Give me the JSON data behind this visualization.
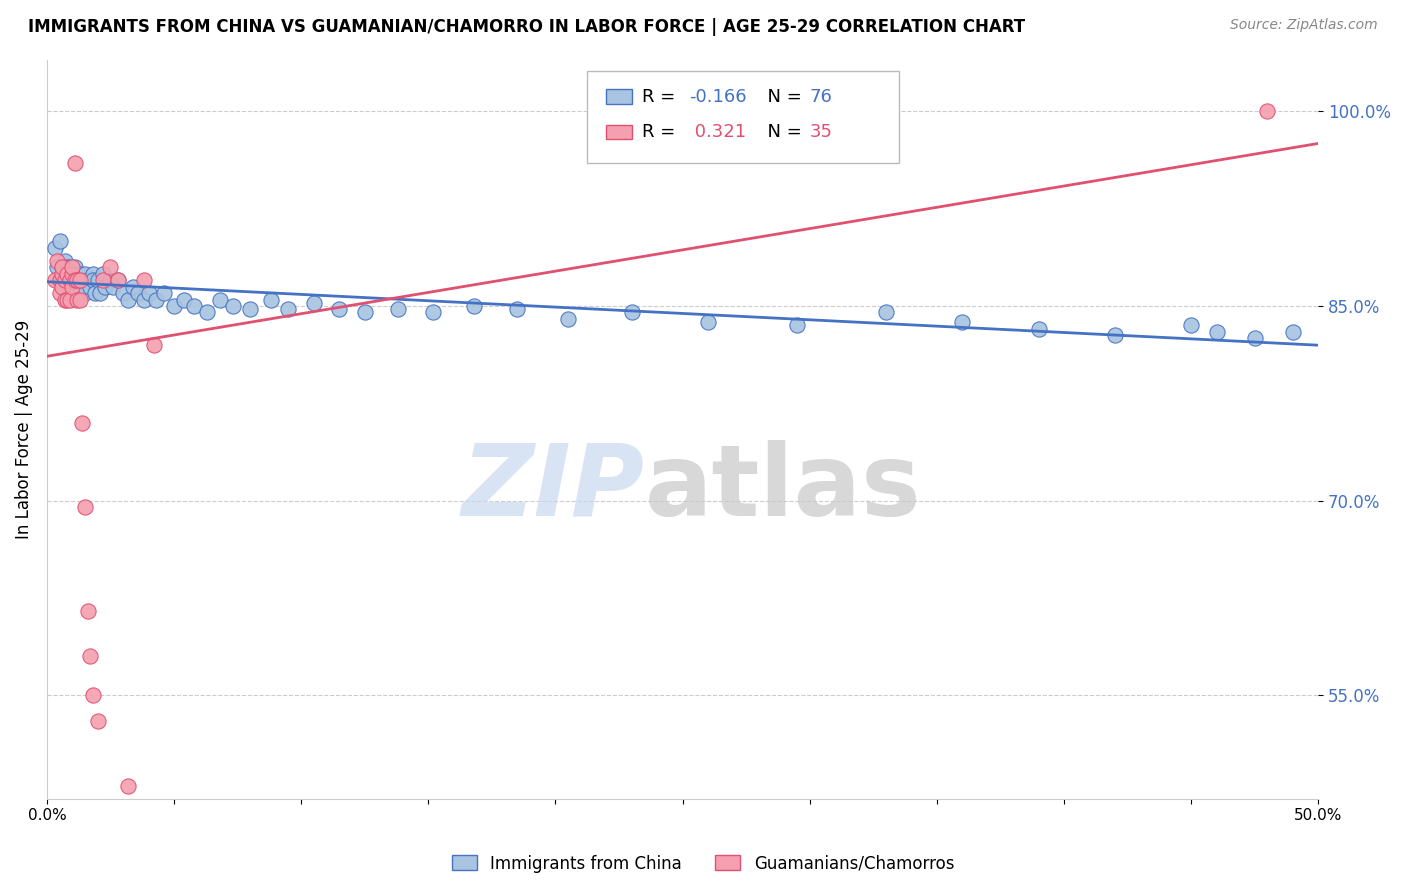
{
  "title": "IMMIGRANTS FROM CHINA VS GUAMANIAN/CHAMORRO IN LABOR FORCE | AGE 25-29 CORRELATION CHART",
  "source": "Source: ZipAtlas.com",
  "ylabel": "In Labor Force | Age 25-29",
  "xmin": 0.0,
  "xmax": 0.5,
  "ymin": 0.47,
  "ymax": 1.04,
  "yticks": [
    0.55,
    0.7,
    0.85,
    1.0
  ],
  "ytick_labels": [
    "55.0%",
    "70.0%",
    "85.0%",
    "100.0%"
  ],
  "xticks": [
    0.0,
    0.05,
    0.1,
    0.15,
    0.2,
    0.25,
    0.3,
    0.35,
    0.4,
    0.45,
    0.5
  ],
  "xtick_labels": [
    "0.0%",
    "",
    "",
    "",
    "",
    "",
    "",
    "",
    "",
    "",
    "50.0%"
  ],
  "china_R": -0.166,
  "china_N": 76,
  "guam_R": 0.321,
  "guam_N": 35,
  "china_color": "#a8c4e0",
  "guam_color": "#f4a0b0",
  "china_line_color": "#4472c4",
  "guam_line_color": "#e05070",
  "china_x": [
    0.003,
    0.004,
    0.005,
    0.005,
    0.006,
    0.006,
    0.007,
    0.007,
    0.007,
    0.008,
    0.008,
    0.008,
    0.009,
    0.009,
    0.009,
    0.01,
    0.01,
    0.01,
    0.011,
    0.011,
    0.011,
    0.012,
    0.012,
    0.013,
    0.013,
    0.014,
    0.015,
    0.015,
    0.016,
    0.017,
    0.018,
    0.018,
    0.019,
    0.02,
    0.021,
    0.022,
    0.023,
    0.025,
    0.026,
    0.028,
    0.03,
    0.032,
    0.034,
    0.036,
    0.038,
    0.04,
    0.043,
    0.046,
    0.05,
    0.054,
    0.058,
    0.063,
    0.068,
    0.073,
    0.08,
    0.088,
    0.095,
    0.105,
    0.115,
    0.125,
    0.138,
    0.152,
    0.168,
    0.185,
    0.205,
    0.23,
    0.26,
    0.295,
    0.33,
    0.36,
    0.39,
    0.42,
    0.45,
    0.46,
    0.475,
    0.49
  ],
  "china_y": [
    0.895,
    0.88,
    0.87,
    0.9,
    0.87,
    0.88,
    0.875,
    0.885,
    0.87,
    0.88,
    0.87,
    0.86,
    0.875,
    0.865,
    0.88,
    0.875,
    0.87,
    0.86,
    0.875,
    0.87,
    0.88,
    0.87,
    0.86,
    0.875,
    0.865,
    0.87,
    0.875,
    0.86,
    0.87,
    0.865,
    0.875,
    0.87,
    0.86,
    0.87,
    0.86,
    0.875,
    0.865,
    0.87,
    0.865,
    0.87,
    0.86,
    0.855,
    0.865,
    0.86,
    0.855,
    0.86,
    0.855,
    0.86,
    0.85,
    0.855,
    0.85,
    0.845,
    0.855,
    0.85,
    0.848,
    0.855,
    0.848,
    0.852,
    0.848,
    0.845,
    0.848,
    0.845,
    0.85,
    0.848,
    0.84,
    0.845,
    0.838,
    0.835,
    0.845,
    0.838,
    0.832,
    0.828,
    0.835,
    0.83,
    0.825,
    0.83
  ],
  "guam_x": [
    0.003,
    0.004,
    0.005,
    0.005,
    0.006,
    0.006,
    0.006,
    0.007,
    0.007,
    0.008,
    0.008,
    0.009,
    0.009,
    0.01,
    0.01,
    0.01,
    0.011,
    0.011,
    0.012,
    0.012,
    0.013,
    0.013,
    0.014,
    0.015,
    0.016,
    0.017,
    0.018,
    0.02,
    0.022,
    0.025,
    0.028,
    0.032,
    0.038,
    0.042,
    0.48
  ],
  "guam_y": [
    0.87,
    0.885,
    0.87,
    0.86,
    0.875,
    0.865,
    0.88,
    0.87,
    0.855,
    0.875,
    0.855,
    0.87,
    0.855,
    0.875,
    0.865,
    0.88,
    0.87,
    0.96,
    0.87,
    0.855,
    0.87,
    0.855,
    0.76,
    0.695,
    0.615,
    0.58,
    0.55,
    0.53,
    0.87,
    0.88,
    0.87,
    0.48,
    0.87,
    0.82,
    1.0
  ]
}
